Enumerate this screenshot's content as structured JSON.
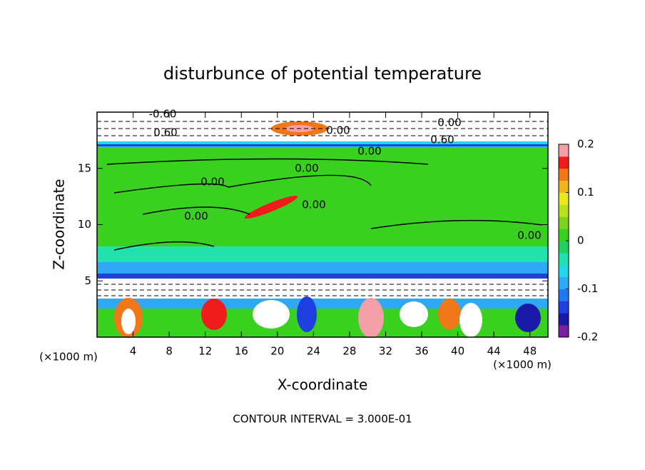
{
  "chart_data": {
    "type": "contour",
    "title": "disturbunce of potential temperature",
    "x_label": "X-coordinate",
    "y_label": "Z-coordinate",
    "x_unit": "(×1000 m)",
    "y_unit": "(×1000 m)",
    "footer": "CONTOUR INTERVAL = 3.000E-01",
    "xlim": [
      0,
      50
    ],
    "xticks": [
      4,
      8,
      12,
      16,
      20,
      24,
      28,
      32,
      36,
      40,
      44,
      48
    ],
    "ylim": [
      0,
      20
    ],
    "yticks": [
      5,
      10,
      15
    ],
    "annotations": [
      "-0.60",
      "0.60",
      "0.00",
      "0.00",
      "0.00",
      "0.00",
      "0.00",
      "0.00",
      "0.00",
      "0.60",
      "0.00"
    ],
    "colorbar": {
      "lim": [
        -0.2,
        0.2
      ],
      "ticks": [
        -0.2,
        -0.1,
        0,
        0.1,
        0.2
      ],
      "colors": [
        "#7a1fa0",
        "#1a1aa8",
        "#1f3fe0",
        "#1e78f0",
        "#2fa8f5",
        "#22d8e8",
        "#22e0b0",
        "#20d060",
        "#3ad020",
        "#7ed21c",
        "#b8e01c",
        "#e8e81c",
        "#f0b41c",
        "#f07818",
        "#f01c1c",
        "#f4a0a8"
      ]
    }
  }
}
